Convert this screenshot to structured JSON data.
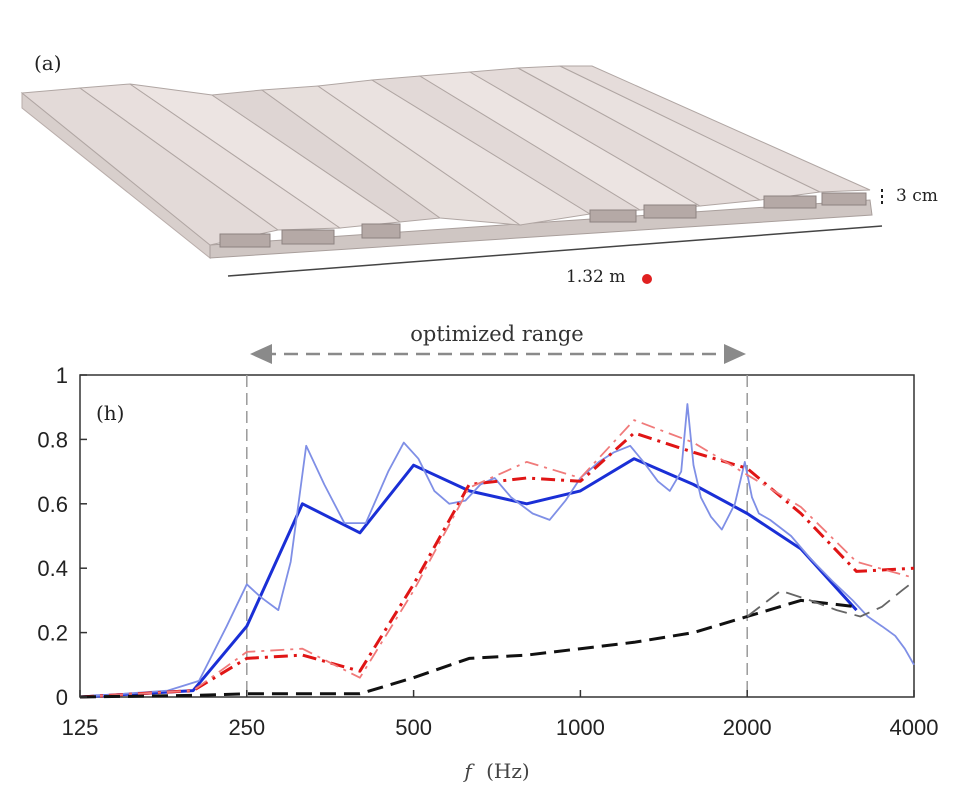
{
  "panel_a": {
    "label": "(a)",
    "height_dim": "3 cm",
    "length_dim": "1.32 m"
  },
  "chart_data": {
    "type": "line",
    "panel_label": "(h)",
    "annotation": "optimized range",
    "xlabel_var": "f",
    "xlabel_unit": "(Hz)",
    "xscale": "log2",
    "xlim": [
      125,
      4000
    ],
    "ylim": [
      0,
      1
    ],
    "xticks": [
      "125",
      "250",
      "500",
      "1000",
      "2000",
      "4000"
    ],
    "xtick_values": [
      125,
      250,
      500,
      1000,
      2000,
      4000
    ],
    "yticks": [
      "0",
      "0.2",
      "0.4",
      "0.6",
      "0.8",
      "1"
    ],
    "ytick_values": [
      0,
      0.2,
      0.4,
      0.6,
      0.8,
      1
    ],
    "optimized_range": [
      250,
      2000
    ],
    "grid": false,
    "legend": false,
    "colors": {
      "blue": "#1a2fd6",
      "blue_light": "#7f8fe6",
      "red": "#e01515",
      "red_light": "#f07a7a",
      "black": "#111111",
      "gray": "#9a9a9a"
    },
    "series": [
      {
        "style": "solid",
        "color": "#1a2fd6",
        "width": 3,
        "x": [
          125,
          200,
          250,
          315,
          400,
          500,
          630,
          800,
          1000,
          1250,
          1600,
          2000,
          2500,
          3150
        ],
        "y": [
          0,
          0.02,
          0.22,
          0.6,
          0.51,
          0.72,
          0.64,
          0.6,
          0.64,
          0.74,
          0.66,
          0.57,
          0.46,
          0.27
        ]
      },
      {
        "style": "solid",
        "color": "#7f8fe6",
        "width": 1.8,
        "x": [
          125,
          180,
          205,
          230,
          250,
          265,
          285,
          300,
          320,
          345,
          375,
          410,
          450,
          480,
          510,
          545,
          580,
          620,
          660,
          700,
          750,
          820,
          880,
          940,
          1000,
          1080,
          1150,
          1230,
          1300,
          1380,
          1450,
          1520,
          1560,
          1600,
          1650,
          1720,
          1800,
          1900,
          1980,
          2040,
          2100,
          2200,
          2400,
          2600,
          2850,
          3100,
          3300,
          3500,
          3700,
          3850,
          4000
        ],
        "y": [
          0,
          0.02,
          0.05,
          0.22,
          0.35,
          0.31,
          0.27,
          0.42,
          0.78,
          0.66,
          0.54,
          0.54,
          0.7,
          0.79,
          0.74,
          0.64,
          0.6,
          0.61,
          0.66,
          0.68,
          0.62,
          0.57,
          0.55,
          0.61,
          0.68,
          0.73,
          0.76,
          0.78,
          0.73,
          0.67,
          0.64,
          0.7,
          0.91,
          0.72,
          0.62,
          0.56,
          0.52,
          0.6,
          0.73,
          0.62,
          0.57,
          0.55,
          0.5,
          0.43,
          0.36,
          0.3,
          0.25,
          0.22,
          0.19,
          0.15,
          0.1
        ]
      },
      {
        "style": "dashdot",
        "color": "#e01515",
        "width": 3,
        "x": [
          125,
          200,
          250,
          315,
          400,
          500,
          630,
          800,
          1000,
          1250,
          1600,
          2000,
          2500,
          3150,
          4000
        ],
        "y": [
          0,
          0.02,
          0.12,
          0.13,
          0.08,
          0.35,
          0.66,
          0.68,
          0.67,
          0.82,
          0.76,
          0.71,
          0.57,
          0.39,
          0.4
        ]
      },
      {
        "style": "dashdot",
        "color": "#f07a7a",
        "width": 1.8,
        "x": [
          125,
          200,
          250,
          315,
          400,
          500,
          630,
          800,
          1000,
          1250,
          1600,
          2000,
          2500,
          3150,
          4000
        ],
        "y": [
          0,
          0.02,
          0.14,
          0.15,
          0.06,
          0.33,
          0.65,
          0.73,
          0.68,
          0.86,
          0.79,
          0.69,
          0.59,
          0.42,
          0.37
        ]
      },
      {
        "style": "dashed",
        "color": "#111111",
        "width": 3,
        "x": [
          125,
          200,
          250,
          315,
          400,
          500,
          630,
          800,
          1000,
          1250,
          1600,
          2000,
          2500,
          3150
        ],
        "y": [
          0,
          0.005,
          0.01,
          0.01,
          0.01,
          0.06,
          0.12,
          0.13,
          0.15,
          0.17,
          0.2,
          0.25,
          0.3,
          0.28
        ]
      },
      {
        "style": "dashed",
        "color": "#666666",
        "width": 1.8,
        "x": [
          2000,
          2300,
          2600,
          2900,
          3200,
          3500,
          3800,
          4000
        ],
        "y": [
          0.25,
          0.33,
          0.3,
          0.27,
          0.25,
          0.28,
          0.33,
          0.36
        ]
      }
    ]
  }
}
